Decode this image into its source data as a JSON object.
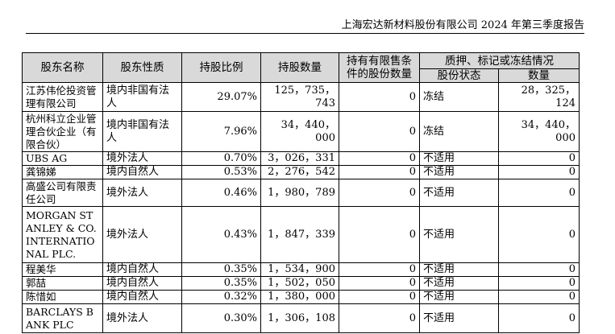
{
  "header": {
    "title": "上海宏达新材料股份有限公司 2024 年第三季度报告"
  },
  "table": {
    "headers": [
      "股东名称",
      "股东性质",
      "持股比例",
      "持股数量",
      "持有有限售条件的股份数量",
      "质押、标记或冻结情况",
      "股份状态",
      "数量"
    ],
    "rows": [
      [
        "江苏伟伦投资管理有限公司",
        "境内非国有法人",
        "29.07%",
        "125，735，743",
        "0",
        "冻结",
        "28，325，124"
      ],
      [
        "杭州科立企业管理合伙企业（有限合伙）",
        "境内非国有法人",
        "7.96%",
        "34，440，000",
        "0",
        "冻结",
        "34，440，000"
      ],
      [
        "UBS AG",
        "境外法人",
        "0.70%",
        "3，026，331",
        "0",
        "不适用",
        "0"
      ],
      [
        "龚锦娣",
        "境内自然人",
        "0.53%",
        "2，276，542",
        "0",
        "不适用",
        "0"
      ],
      [
        "高盛公司有限责任公司",
        "境外法人",
        "0.46%",
        "1，980，789",
        "0",
        "不适用",
        "0"
      ],
      [
        "MORGAN STANLEY & CO. INTERNATIONAL PLC.",
        "境外法人",
        "0.43%",
        "1，847，339",
        "0",
        "不适用",
        "0"
      ],
      [
        "程美华",
        "境内自然人",
        "0.35%",
        "1，534，900",
        "0",
        "不适用",
        "0"
      ],
      [
        "郭喆",
        "境内自然人",
        "0.35%",
        "1，502，050",
        "0",
        "不适用",
        "0"
      ],
      [
        "陈惜如",
        "境内自然人",
        "0.32%",
        "1，380，000",
        "0",
        "不适用",
        "0"
      ],
      [
        "BARCLAYS BANK PLC",
        "境外法人",
        "0.30%",
        "1，306，108",
        "0",
        "不适用",
        "0"
      ]
    ]
  }
}
